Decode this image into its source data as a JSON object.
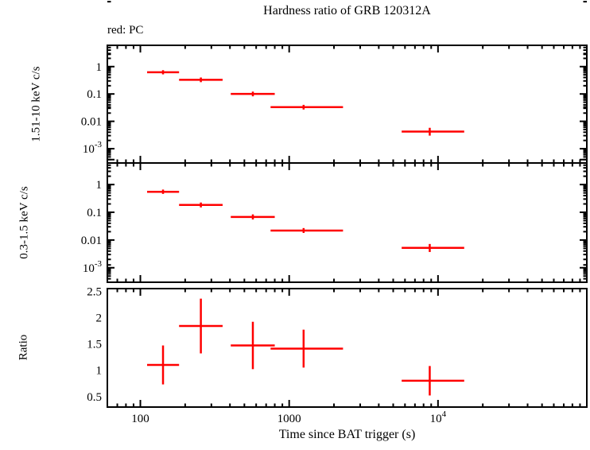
{
  "figure": {
    "title": "Hardness ratio of GRB 120312A",
    "annotation": "red: PC",
    "xlabel": "Time since BAT trigger (s)",
    "accent_color": "#ff0000",
    "axis_color": "#000000"
  },
  "chart_data": {
    "type": "scatter",
    "subject": "GRB 120312A",
    "mode": "PC",
    "x_scale": "log",
    "xlim": [
      60,
      100000
    ],
    "x_ticks_labeled": [
      {
        "value": 100,
        "label": "100"
      },
      {
        "value": 1000,
        "label": "1000"
      },
      {
        "value": 10000,
        "label": "10^4"
      }
    ],
    "panels": [
      {
        "name": "hard-band",
        "ylabel": "1.51-10 keV c/s",
        "y_scale": "log",
        "ylim": [
          0.0003,
          6
        ],
        "y_ticks_labeled": [
          {
            "value": 1,
            "label": "1"
          },
          {
            "value": 0.1,
            "label": "0.1"
          },
          {
            "value": 0.01,
            "label": "0.01"
          },
          {
            "value": 0.001,
            "label": "10^-3"
          }
        ],
        "points": [
          {
            "x": 142,
            "xlo": 111,
            "xhi": 182,
            "y": 0.62,
            "ylo": 0.52,
            "yhi": 0.74
          },
          {
            "x": 255,
            "xlo": 182,
            "xhi": 357,
            "y": 0.33,
            "ylo": 0.27,
            "yhi": 0.4
          },
          {
            "x": 570,
            "xlo": 405,
            "xhi": 800,
            "y": 0.1,
            "ylo": 0.082,
            "yhi": 0.122
          },
          {
            "x": 1250,
            "xlo": 750,
            "xhi": 2300,
            "y": 0.033,
            "ylo": 0.027,
            "yhi": 0.04
          },
          {
            "x": 8800,
            "xlo": 5700,
            "xhi": 15000,
            "y": 0.0042,
            "ylo": 0.003,
            "yhi": 0.0058
          }
        ]
      },
      {
        "name": "soft-band",
        "ylabel": "0.3-1.5 keV c/s",
        "y_scale": "log",
        "ylim": [
          0.0003,
          6
        ],
        "y_ticks_labeled": [
          {
            "value": 1,
            "label": "1"
          },
          {
            "value": 0.1,
            "label": "0.1"
          },
          {
            "value": 0.01,
            "label": "0.01"
          },
          {
            "value": 0.001,
            "label": "10^-3"
          }
        ],
        "points": [
          {
            "x": 142,
            "xlo": 111,
            "xhi": 182,
            "y": 0.55,
            "ylo": 0.46,
            "yhi": 0.66
          },
          {
            "x": 255,
            "xlo": 182,
            "xhi": 357,
            "y": 0.185,
            "ylo": 0.15,
            "yhi": 0.225
          },
          {
            "x": 570,
            "xlo": 405,
            "xhi": 800,
            "y": 0.068,
            "ylo": 0.055,
            "yhi": 0.084
          },
          {
            "x": 1250,
            "xlo": 750,
            "xhi": 2300,
            "y": 0.022,
            "ylo": 0.018,
            "yhi": 0.027
          },
          {
            "x": 8800,
            "xlo": 5700,
            "xhi": 15000,
            "y": 0.0052,
            "ylo": 0.0037,
            "yhi": 0.0072
          }
        ]
      },
      {
        "name": "ratio",
        "ylabel": "Ratio",
        "y_scale": "linear",
        "ylim": [
          0.3,
          2.55
        ],
        "y_ticks_labeled": [
          {
            "value": 0.5,
            "label": "0.5"
          },
          {
            "value": 1,
            "label": "1"
          },
          {
            "value": 1.5,
            "label": "1.5"
          },
          {
            "value": 2,
            "label": "2"
          },
          {
            "value": 2.5,
            "label": "2.5"
          }
        ],
        "points": [
          {
            "x": 142,
            "xlo": 111,
            "xhi": 182,
            "y": 1.1,
            "ylo": 0.73,
            "yhi": 1.47
          },
          {
            "x": 255,
            "xlo": 182,
            "xhi": 357,
            "y": 1.84,
            "ylo": 1.32,
            "yhi": 2.36
          },
          {
            "x": 570,
            "xlo": 405,
            "xhi": 800,
            "y": 1.47,
            "ylo": 1.02,
            "yhi": 1.92
          },
          {
            "x": 1250,
            "xlo": 750,
            "xhi": 2300,
            "y": 1.41,
            "ylo": 1.05,
            "yhi": 1.77
          },
          {
            "x": 8800,
            "xlo": 5700,
            "xhi": 15000,
            "y": 0.8,
            "ylo": 0.52,
            "yhi": 1.08
          }
        ]
      }
    ]
  }
}
